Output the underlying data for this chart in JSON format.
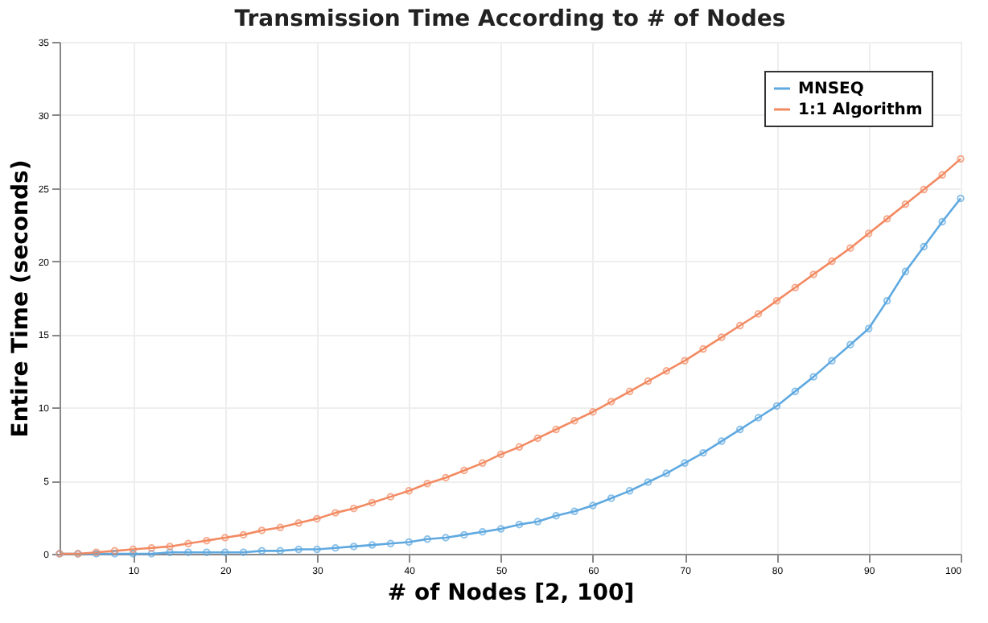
{
  "chart_data": {
    "type": "line",
    "title": "Transmission Time According to # of Nodes",
    "xlabel": "# of Nodes [2, 100]",
    "ylabel": "Entire Time (seconds)",
    "x": [
      2,
      4,
      6,
      8,
      10,
      12,
      14,
      16,
      18,
      20,
      22,
      24,
      26,
      28,
      30,
      32,
      34,
      36,
      38,
      40,
      42,
      44,
      46,
      48,
      50,
      52,
      54,
      56,
      58,
      60,
      62,
      64,
      66,
      68,
      70,
      72,
      74,
      76,
      78,
      80,
      82,
      84,
      86,
      88,
      90,
      92,
      94,
      96,
      98,
      100
    ],
    "series": [
      {
        "name": "MNSEQ",
        "color": "#5fa9e0",
        "values": [
          0,
          0,
          0,
          0,
          0,
          0,
          0.1,
          0.1,
          0.1,
          0.1,
          0.1,
          0.2,
          0.2,
          0.3,
          0.3,
          0.4,
          0.5,
          0.6,
          0.7,
          0.8,
          1.0,
          1.1,
          1.3,
          1.5,
          1.7,
          2.0,
          2.2,
          2.6,
          2.9,
          3.3,
          3.8,
          4.3,
          4.9,
          5.5,
          6.2,
          6.9,
          7.7,
          8.5,
          9.3,
          10.1,
          11.1,
          12.1,
          13.2,
          14.3,
          15.4,
          17.3,
          19.3,
          21.0,
          22.7,
          24.3
        ]
      },
      {
        "name": "1:1 Algorithm",
        "color": "#f28a62",
        "values": [
          0,
          0,
          0.1,
          0.2,
          0.3,
          0.4,
          0.5,
          0.7,
          0.9,
          1.1,
          1.3,
          1.6,
          1.8,
          2.1,
          2.4,
          2.8,
          3.1,
          3.5,
          3.9,
          4.3,
          4.8,
          5.2,
          5.7,
          6.2,
          6.8,
          7.3,
          7.9,
          8.5,
          9.1,
          9.7,
          10.4,
          11.1,
          11.8,
          12.5,
          13.2,
          14.0,
          14.8,
          15.6,
          16.4,
          17.3,
          18.2,
          19.1,
          20.0,
          20.9,
          21.9,
          22.9,
          23.9,
          24.9,
          25.9,
          27.0
        ]
      }
    ],
    "xlim": [
      2,
      100
    ],
    "xticks": [
      10,
      20,
      30,
      40,
      50,
      60,
      70,
      80,
      90,
      100
    ],
    "ylim": [
      0,
      35
    ],
    "yticks": [
      0,
      5,
      10,
      15,
      20,
      25,
      30,
      35
    ],
    "grid": true,
    "legend": "top right",
    "marker": "circle",
    "line_style": "solid"
  }
}
